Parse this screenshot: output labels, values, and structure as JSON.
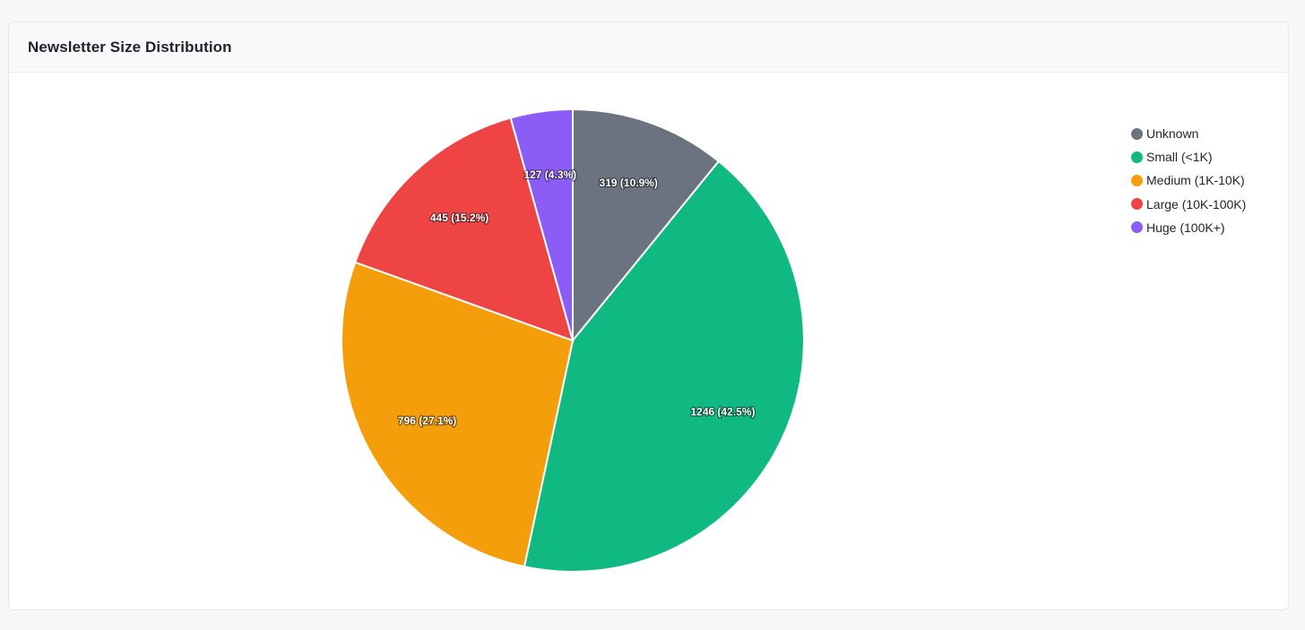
{
  "card": {
    "title": "Newsletter Size Distribution"
  },
  "chart_data": {
    "type": "pie",
    "title": "Newsletter Size Distribution",
    "categories": [
      "Unknown",
      "Small (<1K)",
      "Medium (1K-10K)",
      "Large (10K-100K)",
      "Huge (100K+)"
    ],
    "values": [
      319,
      1246,
      796,
      445,
      127
    ],
    "labels": [
      "319 (10.9%)",
      "1246 (42.5%)",
      "796 (27.1%)",
      "445 (15.2%)",
      "127 (4.3%)"
    ],
    "colors": [
      "#6b7280",
      "#10b981",
      "#f59e0b",
      "#ef4444",
      "#8b5cf6"
    ],
    "start_angle": "top, clockwise",
    "legend_position": "top-right"
  }
}
